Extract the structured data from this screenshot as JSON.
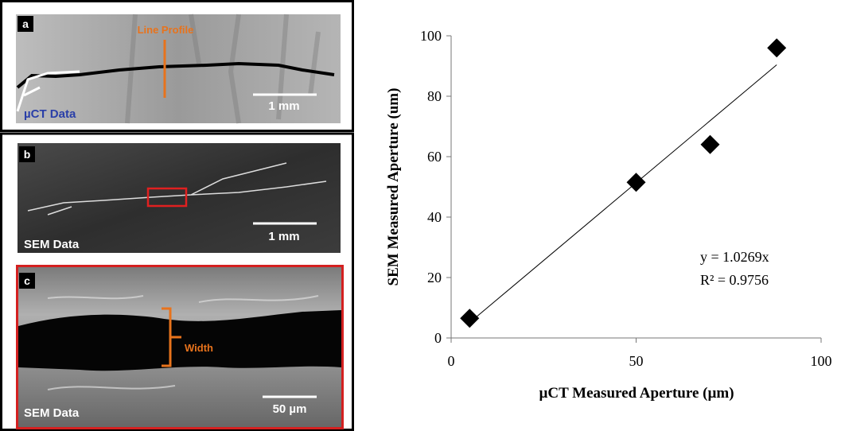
{
  "panels": [
    {
      "label": "a",
      "annotation": "Line Profile",
      "caption": "µCT Data",
      "scale_bar": "1 mm"
    },
    {
      "label": "b",
      "caption": "SEM Data",
      "scale_bar": "1 mm"
    },
    {
      "label": "c",
      "annotation": "Width",
      "caption": "SEM Data",
      "scale_bar": "50 µm"
    }
  ],
  "chart_data": {
    "type": "scatter",
    "x_label": "µCT Measured Aperture (µm)",
    "y_label": "SEM Measured Aperture (um)",
    "x": [
      5,
      50,
      70,
      88
    ],
    "values": [
      6.5,
      51.5,
      64,
      96
    ],
    "color": "#000000",
    "trendline": {
      "x": [
        5,
        88
      ],
      "y": [
        5.1,
        90.4
      ]
    },
    "annotations": [
      "y = 1.0269x",
      "R² = 0.9756"
    ],
    "xlim": [
      0,
      100
    ],
    "xticks": [
      0,
      50,
      100
    ],
    "ylim": [
      0,
      100
    ],
    "yticks": [
      0,
      20,
      40,
      60,
      80,
      100
    ],
    "grid": false
  }
}
